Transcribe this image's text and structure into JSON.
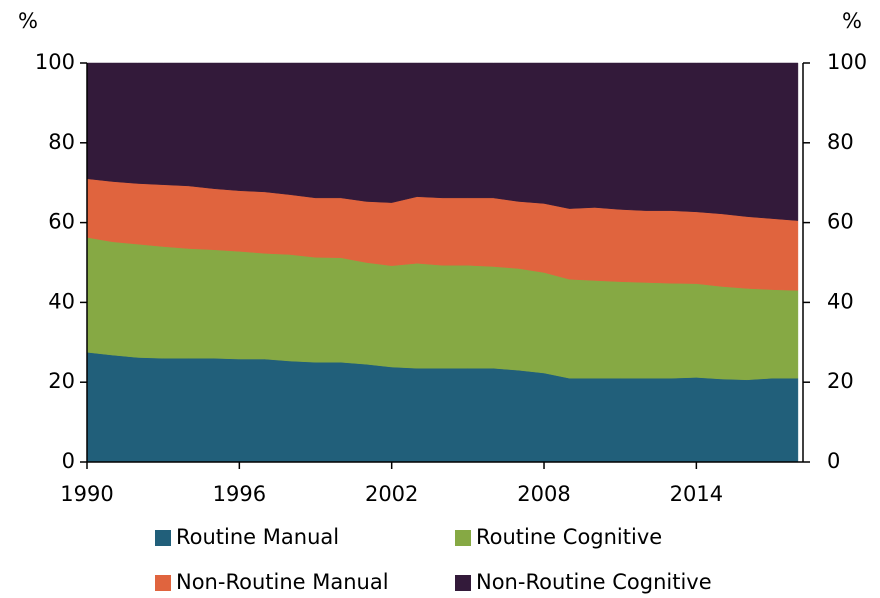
{
  "chart_data": {
    "type": "stacked_area",
    "y_label": "%",
    "y2_label": "%",
    "x": [
      1990,
      1991,
      1992,
      1993,
      1994,
      1995,
      1996,
      1997,
      1998,
      1999,
      2000,
      2001,
      2002,
      2003,
      2004,
      2005,
      2006,
      2007,
      2008,
      2009,
      2010,
      2011,
      2012,
      2013,
      2014,
      2015,
      2016,
      2017,
      2018
    ],
    "xlim": [
      1990,
      2018.2
    ],
    "xticks": [
      1990,
      1996,
      2002,
      2008,
      2014
    ],
    "ylim": [
      0,
      100
    ],
    "yticks": [
      0,
      20,
      40,
      60,
      80,
      100
    ],
    "y2lim": [
      0,
      100
    ],
    "y2ticks": [
      0,
      20,
      40,
      60,
      80,
      100
    ],
    "series": [
      {
        "name": "Routine Manual",
        "color": "#215f7a",
        "values": [
          27.5,
          26.8,
          26.2,
          26,
          26,
          26,
          25.8,
          25.8,
          25.3,
          25,
          25,
          24.5,
          23.8,
          23.5,
          23.5,
          23.5,
          23.5,
          23,
          22.3,
          21,
          21,
          21,
          21,
          21,
          21.2,
          20.8,
          20.6,
          21,
          21
        ]
      },
      {
        "name": "Routine Cognitive",
        "color": "#86a944",
        "values": [
          28.8,
          28.4,
          28.4,
          28,
          27.5,
          27.2,
          27,
          26.5,
          26.7,
          26.3,
          26.2,
          25.5,
          25.4,
          26.3,
          25.8,
          25.8,
          25.5,
          25.5,
          25.2,
          24.8,
          24.5,
          24.2,
          24,
          23.8,
          23.5,
          23.2,
          22.9,
          22.2,
          22
        ]
      },
      {
        "name": "Non-Routine Manual",
        "color": "#e0643e",
        "values": [
          14.7,
          15.1,
          15.2,
          15.5,
          15.7,
          15.3,
          15.2,
          15.4,
          15,
          14.9,
          15,
          15.3,
          15.8,
          16.7,
          16.9,
          16.9,
          17.2,
          16.8,
          17.3,
          17.7,
          18.3,
          18.1,
          18,
          18.2,
          18,
          18.2,
          18,
          17.8,
          17.5
        ]
      },
      {
        "name": "Non-Routine Cognitive",
        "color": "#331a3a",
        "values": [
          29,
          29.7,
          30.2,
          30.5,
          30.8,
          31.5,
          32,
          32.3,
          33,
          33.8,
          33.8,
          34.7,
          35,
          33.5,
          33.8,
          33.8,
          33.8,
          34.7,
          35.2,
          36.5,
          36.2,
          36.7,
          37,
          37,
          37.3,
          37.8,
          38.5,
          39,
          39.5
        ]
      }
    ]
  }
}
